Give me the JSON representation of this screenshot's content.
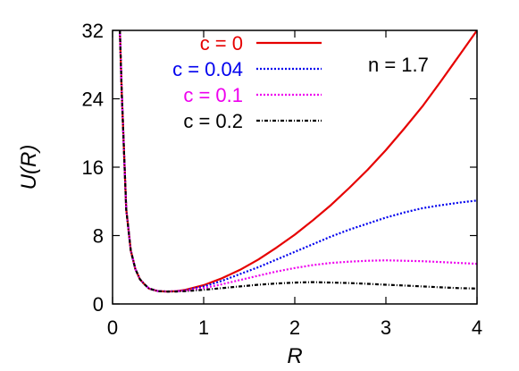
{
  "chart_data": {
    "type": "line",
    "xlabel": "R",
    "ylabel": "U(R)",
    "xlim": [
      0,
      4
    ],
    "ylim": [
      0,
      32
    ],
    "xticks": [
      "0",
      "1",
      "2",
      "3",
      "4"
    ],
    "yticks": [
      "0",
      "8",
      "16",
      "24",
      "32"
    ],
    "legend_position": "top-center",
    "grid": false,
    "annotation": "n = 1.7",
    "series": [
      {
        "name": "c = 0",
        "color": "#e60000",
        "dash": "solid",
        "x": [
          0.08,
          0.1,
          0.15,
          0.2,
          0.25,
          0.3,
          0.35,
          0.4,
          0.5,
          0.6,
          0.7,
          0.8,
          1.0,
          1.2,
          1.4,
          1.6,
          1.8,
          2.0,
          2.2,
          2.4,
          2.6,
          2.8,
          3.0,
          3.2,
          3.4,
          3.6,
          3.8,
          4.0
        ],
        "y": [
          32,
          25.0,
          11.1,
          6.25,
          4.1,
          2.9,
          2.3,
          1.8,
          1.5,
          1.45,
          1.5,
          1.65,
          2.2,
          3.0,
          4.0,
          5.2,
          6.6,
          8.1,
          9.8,
          11.6,
          13.6,
          15.7,
          18.0,
          20.5,
          23.1,
          26.0,
          29.0,
          32.0
        ]
      },
      {
        "name": "c = 0.04",
        "color": "#0000ee",
        "dash": "dotted",
        "x": [
          0.08,
          0.1,
          0.15,
          0.2,
          0.25,
          0.3,
          0.35,
          0.4,
          0.5,
          0.6,
          0.7,
          0.8,
          1.0,
          1.2,
          1.4,
          1.6,
          1.8,
          2.0,
          2.2,
          2.4,
          2.6,
          2.8,
          3.0,
          3.2,
          3.4,
          3.6,
          3.8,
          4.0
        ],
        "y": [
          32,
          25.0,
          11.1,
          6.25,
          4.1,
          2.9,
          2.3,
          1.8,
          1.5,
          1.45,
          1.5,
          1.6,
          2.05,
          2.7,
          3.5,
          4.3,
          5.2,
          6.1,
          7.0,
          7.9,
          8.7,
          9.4,
          10.1,
          10.7,
          11.2,
          11.55,
          11.85,
          12.1
        ]
      },
      {
        "name": "c = 0.1",
        "color": "#ee00ee",
        "dash": "dotted",
        "x": [
          0.08,
          0.1,
          0.15,
          0.2,
          0.25,
          0.3,
          0.35,
          0.4,
          0.5,
          0.6,
          0.7,
          0.8,
          1.0,
          1.2,
          1.4,
          1.6,
          1.8,
          2.0,
          2.2,
          2.4,
          2.6,
          2.8,
          3.0,
          3.2,
          3.4,
          3.6,
          3.8,
          4.0
        ],
        "y": [
          32,
          25.0,
          11.1,
          6.25,
          4.1,
          2.9,
          2.3,
          1.8,
          1.5,
          1.45,
          1.5,
          1.55,
          1.85,
          2.3,
          2.8,
          3.3,
          3.8,
          4.2,
          4.55,
          4.8,
          4.95,
          5.05,
          5.1,
          5.05,
          5.0,
          4.9,
          4.8,
          4.7
        ]
      },
      {
        "name": "c = 0.2",
        "color": "#000000",
        "dash": "dashdot",
        "x": [
          0.08,
          0.1,
          0.15,
          0.2,
          0.25,
          0.3,
          0.35,
          0.4,
          0.5,
          0.6,
          0.7,
          0.8,
          1.0,
          1.2,
          1.4,
          1.6,
          1.8,
          2.0,
          2.2,
          2.4,
          2.6,
          2.8,
          3.0,
          3.2,
          3.4,
          3.6,
          3.8,
          4.0
        ],
        "y": [
          32,
          25.0,
          11.1,
          6.25,
          4.1,
          2.9,
          2.3,
          1.8,
          1.5,
          1.45,
          1.45,
          1.5,
          1.65,
          1.85,
          2.05,
          2.25,
          2.4,
          2.5,
          2.55,
          2.5,
          2.45,
          2.35,
          2.25,
          2.15,
          2.05,
          1.95,
          1.85,
          1.8
        ]
      }
    ]
  }
}
